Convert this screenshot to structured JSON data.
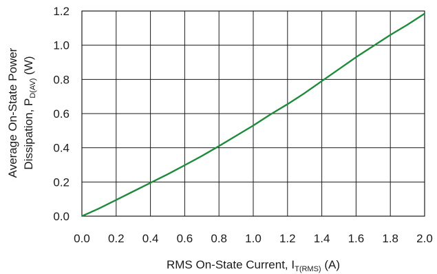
{
  "chart_data": {
    "type": "line",
    "title": "",
    "xlabel": {
      "main": "RMS On-State Current, I",
      "sub": "T(RMS)",
      "unit": " (A)"
    },
    "ylabel": {
      "line1": "Average On-State Power",
      "line2_main": "Dissipation, P",
      "line2_sub": "D(AV)",
      "line2_unit": " (W)"
    },
    "xlim": [
      0.0,
      2.0
    ],
    "ylim": [
      0.0,
      1.2
    ],
    "xticks": [
      "0.0",
      "0.2",
      "0.4",
      "0.6",
      "0.8",
      "1.0",
      "1.2",
      "1.4",
      "1.6",
      "1.8",
      "2.0"
    ],
    "yticks": [
      "0.0",
      "0.2",
      "0.4",
      "0.6",
      "0.8",
      "1.0",
      "1.2"
    ],
    "x_grid_values": [
      0.0,
      0.2,
      0.4,
      0.6,
      0.8,
      1.0,
      1.2,
      1.4,
      1.6,
      1.8,
      2.0
    ],
    "y_grid_values": [
      0.0,
      0.2,
      0.4,
      0.6,
      0.8,
      1.0,
      1.2
    ],
    "grid": true,
    "series": [
      {
        "color": "#1e8a3c",
        "x": [
          0.0,
          0.1,
          0.2,
          0.3,
          0.4,
          0.5,
          0.6,
          0.7,
          0.8,
          0.9,
          1.0,
          1.1,
          1.2,
          1.3,
          1.4,
          1.5,
          1.6,
          1.7,
          1.8,
          1.9,
          2.0
        ],
        "y": [
          0.0,
          0.045,
          0.095,
          0.145,
          0.195,
          0.245,
          0.298,
          0.352,
          0.41,
          0.47,
          0.53,
          0.595,
          0.655,
          0.72,
          0.79,
          0.86,
          0.93,
          0.995,
          1.06,
          1.12,
          1.185
        ]
      }
    ]
  }
}
